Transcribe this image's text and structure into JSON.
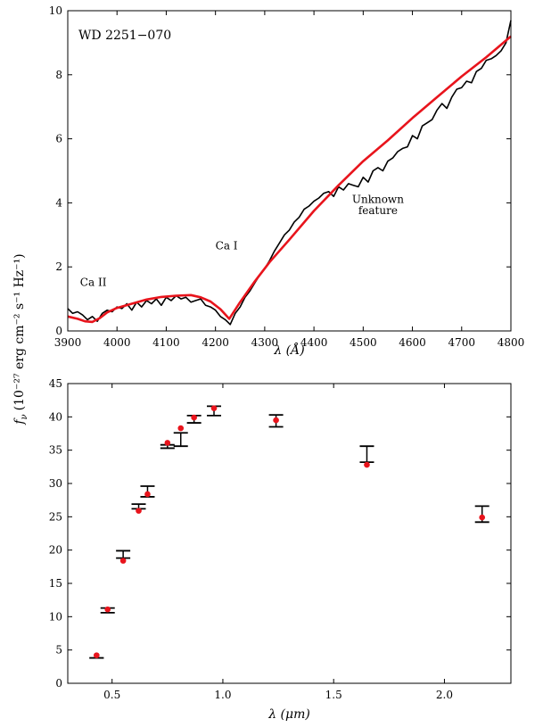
{
  "chart_data": [
    {
      "type": "line",
      "title": "",
      "annotation_label": "WD 2251−070",
      "xlabel": "λ (Å)",
      "ylabel": "(10⁻²⁷ erg cm⁻² s⁻¹ Hz⁻¹)",
      "xlim": [
        3900,
        4800
      ],
      "ylim": [
        0,
        10
      ],
      "xticks": [
        3900,
        4000,
        4100,
        4200,
        4300,
        4400,
        4500,
        4600,
        4700,
        4800
      ],
      "yticks": [
        0,
        2,
        4,
        6,
        8,
        10
      ],
      "grid": false,
      "annotations": [
        {
          "text": "Ca II",
          "x": 3925,
          "y": 1.4
        },
        {
          "text": "Ca I",
          "x": 4200,
          "y": 2.55
        },
        {
          "text": "Unknown",
          "x": 4530,
          "y": 4.0
        },
        {
          "text": "feature",
          "x": 4530,
          "y": 3.65
        }
      ],
      "series": [
        {
          "name": "",
          "color": "#000000",
          "x": [
            3900,
            3910,
            3920,
            3930,
            3940,
            3950,
            3960,
            3970,
            3980,
            3990,
            4000,
            4010,
            4020,
            4030,
            4040,
            4050,
            4060,
            4070,
            4080,
            4090,
            4100,
            4110,
            4120,
            4130,
            4140,
            4150,
            4160,
            4170,
            4180,
            4190,
            4200,
            4210,
            4220,
            4230,
            4240,
            4250,
            4260,
            4270,
            4280,
            4290,
            4300,
            4310,
            4320,
            4330,
            4340,
            4350,
            4360,
            4370,
            4380,
            4390,
            4400,
            4410,
            4420,
            4430,
            4440,
            4450,
            4460,
            4470,
            4480,
            4490,
            4500,
            4510,
            4520,
            4530,
            4540,
            4550,
            4560,
            4570,
            4580,
            4590,
            4600,
            4610,
            4620,
            4630,
            4640,
            4650,
            4660,
            4670,
            4680,
            4690,
            4700,
            4710,
            4720,
            4730,
            4740,
            4750,
            4760,
            4770,
            4780,
            4790,
            4800
          ],
          "y": [
            0.7,
            0.55,
            0.6,
            0.5,
            0.35,
            0.45,
            0.3,
            0.55,
            0.65,
            0.6,
            0.75,
            0.7,
            0.85,
            0.65,
            0.9,
            0.75,
            0.95,
            0.85,
            1.0,
            0.8,
            1.05,
            0.95,
            1.1,
            1.0,
            1.05,
            0.9,
            0.95,
            1.0,
            0.8,
            0.75,
            0.65,
            0.45,
            0.35,
            0.2,
            0.55,
            0.75,
            1.05,
            1.25,
            1.5,
            1.75,
            1.95,
            2.2,
            2.5,
            2.75,
            3.0,
            3.15,
            3.4,
            3.55,
            3.8,
            3.9,
            4.05,
            4.15,
            4.3,
            4.35,
            4.2,
            4.5,
            4.4,
            4.6,
            4.55,
            4.5,
            4.8,
            4.65,
            5.0,
            5.1,
            5.0,
            5.3,
            5.4,
            5.6,
            5.7,
            5.75,
            6.1,
            6.0,
            6.4,
            6.5,
            6.6,
            6.9,
            7.1,
            6.95,
            7.3,
            7.55,
            7.6,
            7.8,
            7.75,
            8.1,
            8.2,
            8.45,
            8.5,
            8.6,
            8.75,
            9.0,
            9.7
          ]
        },
        {
          "name": "",
          "color": "#e8141c",
          "x": [
            3900,
            3920,
            3935,
            3950,
            3965,
            3980,
            4000,
            4030,
            4060,
            4090,
            4120,
            4150,
            4170,
            4190,
            4210,
            4228,
            4250,
            4280,
            4310,
            4350,
            4400,
            4450,
            4500,
            4550,
            4600,
            4650,
            4700,
            4750,
            4800
          ],
          "y": [
            0.45,
            0.38,
            0.3,
            0.28,
            0.4,
            0.58,
            0.72,
            0.85,
            0.98,
            1.06,
            1.1,
            1.12,
            1.05,
            0.92,
            0.68,
            0.38,
            0.9,
            1.55,
            2.15,
            2.85,
            3.75,
            4.55,
            5.3,
            5.95,
            6.65,
            7.3,
            7.95,
            8.55,
            9.2
          ]
        }
      ]
    },
    {
      "type": "scatter",
      "title": "",
      "xlabel": "λ (μm)",
      "ylabel_symbol": "f",
      "ylabel_subscript": "ν",
      "ylabel": "(10⁻²⁷ erg cm⁻² s⁻¹ Hz⁻¹)",
      "xlim": [
        0.3,
        2.3
      ],
      "ylim": [
        0,
        45
      ],
      "xticks": [
        0.5,
        1.0,
        1.5,
        2.0
      ],
      "yticks": [
        0,
        5,
        10,
        15,
        20,
        25,
        30,
        35,
        40,
        45
      ],
      "grid": false,
      "series": [
        {
          "name": "",
          "color": "#000000",
          "marker": "errorbar",
          "x": [
            0.43,
            0.48,
            0.55,
            0.62,
            0.66,
            0.75,
            0.81,
            0.87,
            0.96,
            1.24,
            1.65,
            2.17
          ],
          "y_low": [
            3.8,
            10.6,
            18.8,
            26.2,
            28.0,
            35.3,
            35.6,
            39.1,
            40.2,
            38.5,
            33.2,
            24.2
          ],
          "y_high": [
            3.8,
            11.3,
            19.9,
            26.9,
            29.6,
            35.8,
            37.6,
            40.2,
            41.6,
            40.3,
            35.6,
            26.6
          ]
        },
        {
          "name": "",
          "color": "#e8141c",
          "marker": "dot",
          "x": [
            0.43,
            0.48,
            0.55,
            0.62,
            0.66,
            0.75,
            0.81,
            0.87,
            0.96,
            1.24,
            1.65,
            2.17
          ],
          "y": [
            4.2,
            11.1,
            18.4,
            25.9,
            28.4,
            36.1,
            38.3,
            39.9,
            41.3,
            39.5,
            32.8,
            24.9
          ]
        }
      ]
    }
  ]
}
